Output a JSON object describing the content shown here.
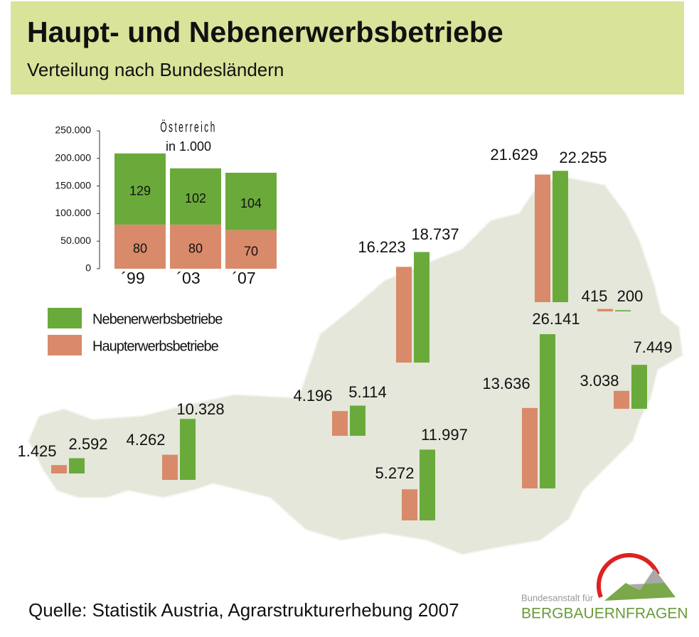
{
  "header": {
    "title": "Haupt- und Nebenerwerbsbetriebe",
    "subtitle": "Verteilung nach Bundesländern"
  },
  "chart_data": [
    {
      "type": "bar",
      "stacked": true,
      "title": "Österreich",
      "subtitle": "in 1.000",
      "categories": [
        "´99",
        "´03",
        "´07"
      ],
      "series": [
        {
          "name": "Haupterwerbsbetriebe",
          "color": "#d98a6a",
          "values": [
            80000,
            80000,
            70000
          ],
          "value_labels": [
            "80",
            "80",
            "70"
          ]
        },
        {
          "name": "Nebenerwerbsbetriebe",
          "color": "#6aaa3a",
          "values": [
            129000,
            102000,
            104000
          ],
          "value_labels": [
            "129",
            "102",
            "104"
          ]
        }
      ],
      "ylim": [
        0,
        250000
      ],
      "yticks": [
        0,
        {
          "value": 50000,
          "label": "50.000"
        },
        {
          "value": 100000,
          "label": "100.000"
        },
        {
          "value": 150000,
          "label": "150.000"
        },
        {
          "value": 200000,
          "label": "200.000"
        },
        {
          "value": 250000,
          "label": "250.000"
        }
      ]
    },
    {
      "type": "map",
      "categories": [
        null,
        null,
        null,
        null,
        null,
        null,
        null,
        null,
        null
      ],
      "series": [
        {
          "color": "#d98a6a",
          "values": [
            1425,
            4262,
            4196,
            16223,
            21629,
            415,
            3038,
            13636,
            5272
          ],
          "value_labels": [
            "1.425",
            "4.262",
            "4.196",
            "16.223",
            "21.629",
            "415",
            "3.038",
            "13.636",
            "5.272"
          ]
        },
        {
          "color": "#6aaa3a",
          "values": [
            2592,
            10328,
            5114,
            18737,
            22255,
            200,
            7449,
            26141,
            11997
          ],
          "value_labels": [
            "2.592",
            "10.328",
            "5.114",
            "18.737",
            "22.255",
            "200",
            "7.449",
            "26.141",
            "11.997"
          ]
        }
      ]
    }
  ],
  "source": "Quelle: Statistik Austria, Agrarstrukturerhebung 2007",
  "logo": {
    "line1": "Bundesanstalt für",
    "line2": "BERGBAUERNFRAGEN"
  }
}
